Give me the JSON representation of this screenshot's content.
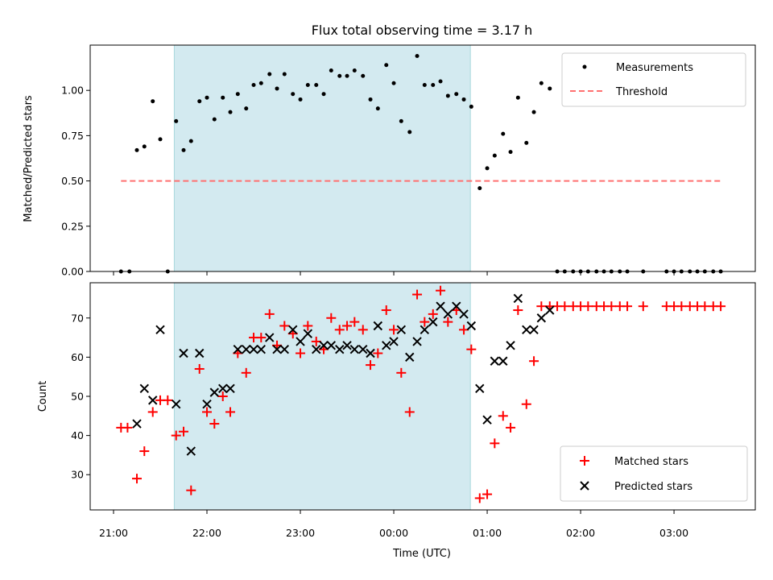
{
  "chart_data": [
    {
      "type": "scatter",
      "title": "Flux total observing time = 3.17 h",
      "xlabel": "",
      "ylabel": "Matched/Predicted stars",
      "ylim": [
        0,
        1.25
      ],
      "yticks": [
        0,
        0.25,
        0.5,
        0.75,
        1.0
      ],
      "ytick_labels": [
        "0.00",
        "0.25",
        "0.50",
        "0.75",
        "1.00"
      ],
      "xlim": [
        20.75,
        27.87
      ],
      "highlight_span": [
        21.65,
        24.82
      ],
      "legend": {
        "placement": "top-right",
        "entries": [
          "Measurements",
          "Threshold"
        ]
      },
      "colors": {
        "measurements": "#000000",
        "threshold": "#ff7070",
        "span": "#d3eaf0"
      },
      "threshold": {
        "name": "Threshold",
        "value": 0.5,
        "x": [
          21.08,
          27.5
        ]
      },
      "series": [
        {
          "name": "Measurements",
          "x": [
            21.08,
            21.17,
            21.25,
            21.33,
            21.42,
            21.5,
            21.58,
            21.67,
            21.75,
            21.83,
            21.92,
            22.0,
            22.08,
            22.17,
            22.25,
            22.33,
            22.42,
            22.5,
            22.58,
            22.67,
            22.75,
            22.83,
            22.92,
            23.0,
            23.08,
            23.17,
            23.25,
            23.33,
            23.42,
            23.5,
            23.58,
            23.67,
            23.75,
            23.83,
            23.92,
            24.0,
            24.08,
            24.17,
            24.25,
            24.33,
            24.42,
            24.5,
            24.58,
            24.67,
            24.75,
            24.83,
            24.92,
            25.0,
            25.08,
            25.17,
            25.25,
            25.33,
            25.42,
            25.5,
            25.58,
            25.67,
            25.75,
            25.83,
            25.92,
            26.0,
            26.08,
            26.17,
            26.25,
            26.33,
            26.42,
            26.5,
            26.67,
            26.92,
            27.0,
            27.08,
            27.17,
            27.25,
            27.33,
            27.42,
            27.5
          ],
          "y": [
            0.0,
            0.0,
            0.67,
            0.69,
            0.94,
            0.73,
            0.0,
            0.83,
            0.67,
            0.72,
            0.94,
            0.96,
            0.84,
            0.96,
            0.88,
            0.98,
            0.9,
            1.03,
            1.04,
            1.09,
            1.01,
            1.09,
            0.98,
            0.95,
            1.03,
            1.03,
            0.98,
            1.11,
            1.08,
            1.08,
            1.11,
            1.08,
            0.95,
            0.9,
            1.14,
            1.04,
            0.83,
            0.77,
            1.19,
            1.03,
            1.03,
            1.05,
            0.97,
            0.98,
            0.95,
            0.91,
            0.46,
            0.57,
            0.64,
            0.76,
            0.66,
            0.96,
            0.71,
            0.88,
            1.04,
            1.01,
            0.0,
            0.0,
            0.0,
            0.0,
            0.0,
            0.0,
            0.0,
            0.0,
            0.0,
            0.0,
            0.0,
            0.0,
            0.0,
            0.0,
            0.0,
            0.0,
            0.0,
            0.0,
            0.0
          ]
        }
      ]
    },
    {
      "type": "scatter",
      "title": "",
      "xlabel": "Time (UTC)",
      "ylabel": "Count",
      "ylim": [
        21,
        79
      ],
      "yticks": [
        30,
        40,
        50,
        60,
        70
      ],
      "ytick_labels": [
        "30",
        "40",
        "50",
        "60",
        "70"
      ],
      "xlim": [
        20.75,
        27.87
      ],
      "xticks": [
        21,
        22,
        23,
        24,
        25,
        26,
        27
      ],
      "xtick_labels": [
        "21:00",
        "22:00",
        "23:00",
        "00:00",
        "01:00",
        "02:00",
        "03:00"
      ],
      "highlight_span": [
        21.65,
        24.82
      ],
      "legend": {
        "placement": "bottom-right",
        "entries": [
          "Matched stars",
          "Predicted stars"
        ]
      },
      "colors": {
        "matched": "#ff0000",
        "predicted": "#000000",
        "span": "#d3eaf0"
      },
      "series": [
        {
          "name": "Matched stars",
          "x": [
            21.08,
            21.15,
            21.25,
            21.33,
            21.42,
            21.5,
            21.58,
            21.67,
            21.75,
            21.83,
            21.92,
            22.0,
            22.08,
            22.17,
            22.25,
            22.33,
            22.42,
            22.5,
            22.58,
            22.67,
            22.75,
            22.83,
            22.92,
            23.0,
            23.08,
            23.17,
            23.25,
            23.33,
            23.42,
            23.5,
            23.58,
            23.67,
            23.75,
            23.83,
            23.92,
            24.0,
            24.08,
            24.17,
            24.25,
            24.33,
            24.42,
            24.5,
            24.58,
            24.67,
            24.75,
            24.83,
            24.92,
            25.0,
            25.08,
            25.17,
            25.25,
            25.33,
            25.42,
            25.5,
            25.58,
            25.67,
            25.75,
            25.83,
            25.92,
            26.0,
            26.08,
            26.17,
            26.25,
            26.33,
            26.42,
            26.5,
            26.67,
            26.92,
            27.0,
            27.08,
            27.17,
            27.25,
            27.33,
            27.42,
            27.5
          ],
          "y": [
            42,
            42,
            29,
            36,
            46,
            49,
            49,
            40,
            41,
            26,
            57,
            46,
            43,
            50,
            46,
            61,
            56,
            65,
            65,
            71,
            63,
            68,
            66,
            61,
            68,
            64,
            62,
            70,
            67,
            68,
            69,
            67,
            58,
            61,
            72,
            67,
            56,
            46,
            76,
            69,
            71,
            77,
            69,
            72,
            67,
            62,
            24,
            25,
            38,
            45,
            42,
            72,
            48,
            59,
            73,
            73,
            73,
            73,
            73,
            73,
            73,
            73,
            73,
            73,
            73,
            73,
            73,
            73,
            73,
            73,
            73,
            73,
            73,
            73,
            73
          ]
        },
        {
          "name": "Predicted stars",
          "x": [
            21.25,
            21.33,
            21.42,
            21.5,
            21.67,
            21.75,
            21.83,
            21.92,
            22.0,
            22.08,
            22.17,
            22.25,
            22.33,
            22.42,
            22.5,
            22.58,
            22.67,
            22.75,
            22.83,
            22.92,
            23.0,
            23.08,
            23.17,
            23.25,
            23.33,
            23.42,
            23.5,
            23.58,
            23.67,
            23.75,
            23.83,
            23.92,
            24.0,
            24.08,
            24.17,
            24.25,
            24.33,
            24.42,
            24.5,
            24.58,
            24.67,
            24.75,
            24.83,
            24.92,
            25.0,
            25.08,
            25.17,
            25.25,
            25.33,
            25.42,
            25.5,
            25.58,
            25.67
          ],
          "y": [
            43,
            52,
            49,
            67,
            48,
            61,
            36,
            61,
            48,
            51,
            52,
            52,
            62,
            62,
            62,
            62,
            65,
            62,
            62,
            67,
            64,
            66,
            62,
            63,
            63,
            62,
            63,
            62,
            62,
            61,
            68,
            63,
            64,
            67,
            60,
            64,
            67,
            69,
            73,
            71,
            73,
            71,
            68,
            52,
            44,
            59,
            59,
            63,
            75,
            67,
            67,
            70,
            72
          ]
        }
      ]
    }
  ]
}
